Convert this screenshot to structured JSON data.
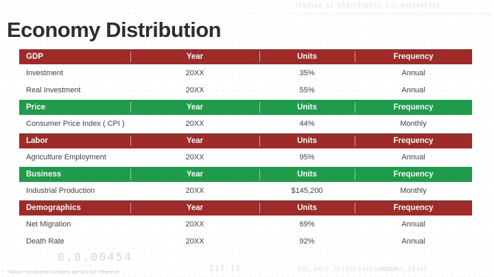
{
  "slide": {
    "title": "Economy Distribution",
    "footnote": "*Above mentioned numbers are just for reference."
  },
  "decorations": {
    "top_right_numbers": "4564544.45 05897868531 3.2 0000005459",
    "bottom_left_big_number": "0.0.00454",
    "bottom_center_number": "217.15",
    "bottom_right_numbers_a": "435.0015 0515858445665454",
    "bottom_right_numbers_b": "485545.58455"
  },
  "colors": {
    "red": "#9E2B28",
    "green": "#1E9B4B",
    "title_text": "#2d2d33",
    "row_text": "#424242"
  },
  "table": {
    "value_columns": [
      "Year",
      "Units",
      "Frequency"
    ],
    "sections": [
      {
        "name": "GDP",
        "color": "red",
        "rows": [
          [
            "Investment",
            "20XX",
            "35%",
            "Annual"
          ],
          [
            "Real Investment",
            "20XX",
            "55%",
            "Annual"
          ]
        ]
      },
      {
        "name": "Price",
        "color": "green",
        "rows": [
          [
            "Consumer Price Index ( CPI )",
            "20XX",
            "44%",
            "Monthly"
          ]
        ]
      },
      {
        "name": "Labor",
        "color": "red",
        "rows": [
          [
            "Agriculture Employment",
            "20XX",
            "95%",
            "Annual"
          ]
        ]
      },
      {
        "name": "Business",
        "color": "green",
        "rows": [
          [
            "Industrial Production",
            "20XX",
            "$145,200",
            "Monthly"
          ]
        ]
      },
      {
        "name": "Demographics",
        "color": "red",
        "rows": [
          [
            "Net Migration",
            "20XX",
            "69%",
            "Annual"
          ],
          [
            "Death Rate",
            "20XX",
            "92%",
            "Annual"
          ]
        ]
      }
    ]
  }
}
